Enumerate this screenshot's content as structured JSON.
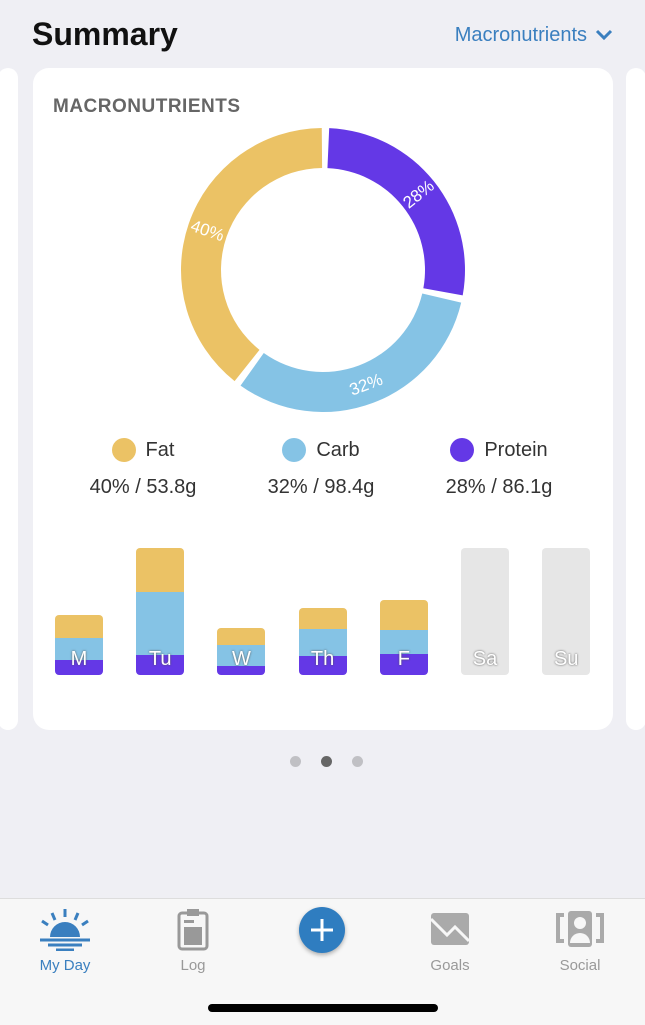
{
  "header": {
    "title": "Summary",
    "dropdown": "Macronutrients"
  },
  "card_title": "MACRONUTRIENTS",
  "colors": {
    "fat": "#ebc265",
    "carb": "#85c3e5",
    "protein": "#6438e6",
    "empty": "#e6e6e6"
  },
  "chart_data": [
    {
      "type": "pie",
      "title": "MACRONUTRIENTS",
      "slices": [
        {
          "name": "Protein",
          "percent": 28,
          "label": "28%"
        },
        {
          "name": "Carb",
          "percent": 32,
          "label": "32%"
        },
        {
          "name": "Fat",
          "percent": 40,
          "label": "40%"
        }
      ]
    },
    {
      "type": "bar",
      "stacked": true,
      "categories": [
        "M",
        "Tu",
        "W",
        "Th",
        "F",
        "Sa",
        "Su"
      ],
      "series": [
        {
          "name": "Protein",
          "values": [
            15,
            20,
            9,
            19,
            21,
            0,
            0
          ]
        },
        {
          "name": "Carb",
          "values": [
            22,
            63,
            21,
            27,
            24,
            0,
            0
          ]
        },
        {
          "name": "Fat",
          "values": [
            23,
            44,
            17,
            21,
            30,
            0,
            0
          ]
        }
      ],
      "empty_max": 127
    }
  ],
  "legend": [
    {
      "name": "Fat",
      "value": "40% / 53.8g",
      "key": "fat"
    },
    {
      "name": "Carb",
      "value": "32% / 98.4g",
      "key": "carb"
    },
    {
      "name": "Protein",
      "value": "28% / 86.1g",
      "key": "protein"
    }
  ],
  "tabs": [
    {
      "label": "My Day"
    },
    {
      "label": "Log"
    },
    {
      "label": "Goals"
    },
    {
      "label": "Social"
    }
  ]
}
